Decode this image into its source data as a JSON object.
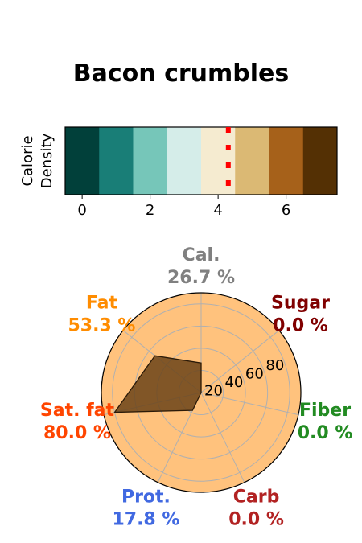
{
  "chart_data": [
    {
      "type": "heatmap",
      "title": "Bacon crumbles",
      "ylabel": "Calorie\nDensity",
      "colors": [
        "#01403a",
        "#197e77",
        "#76c6b9",
        "#d5ede9",
        "#f5ebd0",
        "#dbb974",
        "#a6611a",
        "#543004"
      ],
      "xlim": [
        -0.5,
        7.5
      ],
      "xticks": [
        "0",
        "2",
        "4",
        "6"
      ],
      "xtick_values": [
        0,
        2,
        4,
        6
      ],
      "marker": {
        "x": 4.3,
        "style": "dotted",
        "color": "#ff0000"
      }
    },
    {
      "type": "radar",
      "fill_color": "#6b4318",
      "background": "#ffc27d",
      "rlim": [
        0,
        90
      ],
      "rticks": [
        "20",
        "40",
        "60",
        "80"
      ],
      "rtick_values": [
        20,
        40,
        60,
        80
      ],
      "grid": true,
      "axes": [
        {
          "name": "Cal.",
          "value": 26.7,
          "label": "26.7 %",
          "color": "#808080"
        },
        {
          "name": "Sugar",
          "value": 0.0,
          "label": "0.0 %",
          "color": "#800000"
        },
        {
          "name": "Fiber",
          "value": 0.0,
          "label": "0.0 %",
          "color": "#228b22"
        },
        {
          "name": "Carb",
          "value": 0.0,
          "label": "0.0 %",
          "color": "#b22222"
        },
        {
          "name": "Prot.",
          "value": 17.8,
          "label": "17.8 %",
          "color": "#4169e1"
        },
        {
          "name": "Sat. fat",
          "value": 80.0,
          "label": "80.0 %",
          "color": "#ff4500"
        },
        {
          "name": "Fat",
          "value": 53.3,
          "label": "53.3 %",
          "color": "#ff8c00"
        }
      ]
    }
  ]
}
